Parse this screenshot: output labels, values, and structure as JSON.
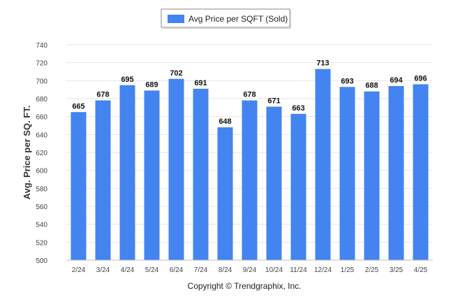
{
  "chart_data": {
    "type": "bar",
    "legend": {
      "label": "Avg Price per SQFT (Sold)",
      "position": "top-center"
    },
    "categories": [
      "2/24",
      "3/24",
      "4/24",
      "5/24",
      "6/24",
      "7/24",
      "8/24",
      "9/24",
      "10/24",
      "11/24",
      "12/24",
      "1/25",
      "2/25",
      "3/25",
      "4/25"
    ],
    "series": [
      {
        "name": "Avg Price per SQFT (Sold)",
        "values": [
          665,
          678,
          695,
          689,
          702,
          691,
          648,
          678,
          671,
          663,
          713,
          693,
          688,
          694,
          696
        ],
        "color": "#4384f0"
      }
    ],
    "ylabel": "Avg. Price per SQ. FT.",
    "xlabel": "",
    "ylim": [
      500,
      740
    ],
    "yticks": [
      500,
      520,
      540,
      560,
      580,
      600,
      620,
      640,
      660,
      680,
      700,
      720,
      740
    ],
    "grid": true,
    "data_labels": true
  },
  "footer": {
    "copyright": "Copyright © Trendgraphix, Inc."
  }
}
